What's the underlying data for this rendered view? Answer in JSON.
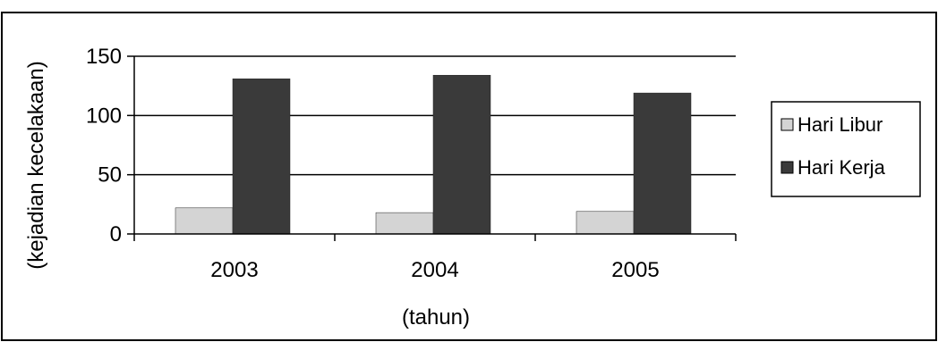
{
  "chart_data": {
    "type": "bar",
    "categories": [
      "2003",
      "2004",
      "2005"
    ],
    "series": [
      {
        "name": "Hari Libur",
        "values": [
          22,
          18,
          19
        ]
      },
      {
        "name": "Hari Kerja",
        "values": [
          131,
          134,
          119
        ]
      }
    ],
    "xlabel": "(tahun)",
    "ylabel": "(kejadian kecelakaan)",
    "ylim": [
      0,
      150
    ],
    "yticks": [
      0,
      50,
      100,
      150
    ],
    "grid": true,
    "legend_position": "right",
    "colors": {
      "hari_libur": "#d4d4d4",
      "hari_kerja": "#3a3a3a",
      "grid": "#000000",
      "frame": "#000000"
    }
  }
}
